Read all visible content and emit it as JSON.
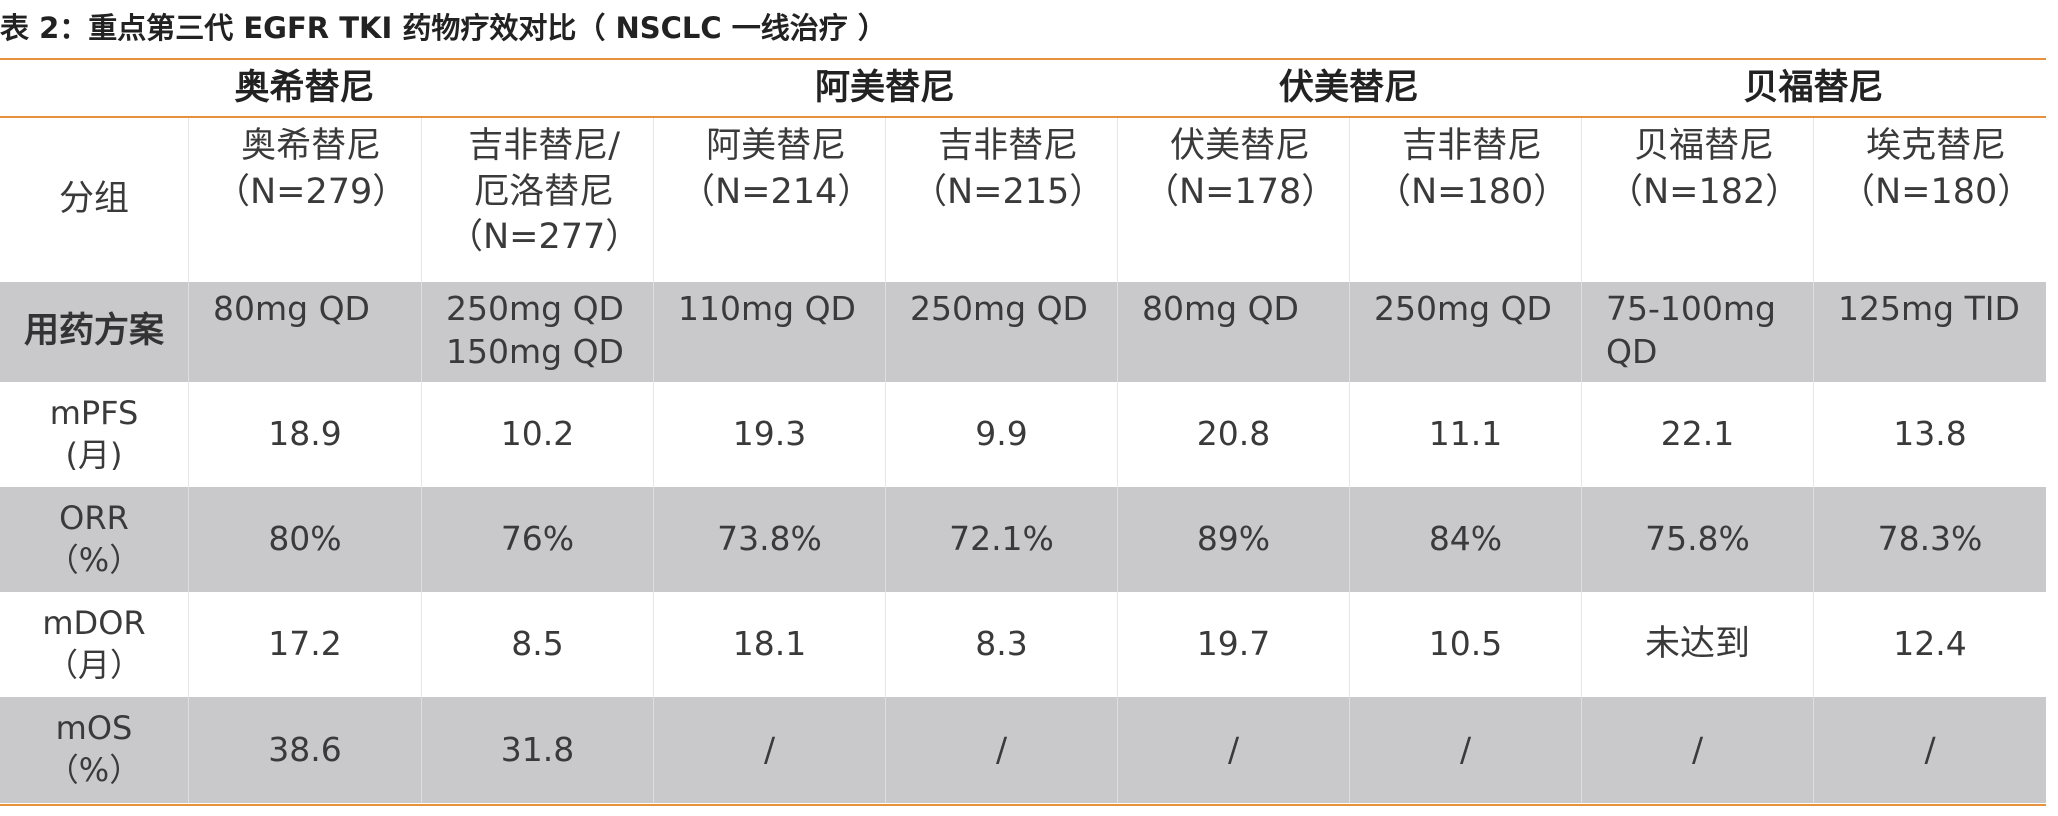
{
  "caption": "表 2：重点第三代 EGFR TKI 药物疗效对比（ NSCLC 一线治疗 ）",
  "groups": [
    "奥希替尼",
    "阿美替尼",
    "伏美替尼",
    "贝福替尼"
  ],
  "header_label": "分组",
  "columns": [
    {
      "line1": "奥希替尼",
      "line2": "（N=279）",
      "line3": ""
    },
    {
      "line1": "吉非替尼/",
      "line2": "厄洛替尼",
      "line3": "（N=277）"
    },
    {
      "line1": "阿美替尼",
      "line2": "（N=214）",
      "line3": ""
    },
    {
      "line1": "吉非替尼",
      "line2": "（N=215）",
      "line3": ""
    },
    {
      "line1": "伏美替尼",
      "line2": "（N=178）",
      "line3": ""
    },
    {
      "line1": "吉非替尼",
      "line2": "（N=180）",
      "line3": ""
    },
    {
      "line1": "贝福替尼",
      "line2": "（N=182）",
      "line3": ""
    },
    {
      "line1": "埃克替尼",
      "line2": "（N=180）",
      "line3": ""
    }
  ],
  "dose_row": {
    "label": "用药方案",
    "values": [
      {
        "l1": "80mg QD",
        "l2": ""
      },
      {
        "l1": "250mg QD",
        "l2": "150mg QD"
      },
      {
        "l1": "110mg QD",
        "l2": ""
      },
      {
        "l1": "250mg QD",
        "l2": ""
      },
      {
        "l1": "80mg QD",
        "l2": ""
      },
      {
        "l1": "250mg QD",
        "l2": ""
      },
      {
        "l1": "75-100mg",
        "l2": "QD"
      },
      {
        "l1": "125mg TID",
        "l2": ""
      }
    ]
  },
  "rows": [
    {
      "label1": "mPFS",
      "label2": "(月)",
      "values": [
        "18.9",
        "10.2",
        "19.3",
        "9.9",
        "20.8",
        "11.1",
        "22.1",
        "13.8"
      ]
    },
    {
      "label1": "ORR",
      "label2": "（%）",
      "values": [
        "80%",
        "76%",
        "73.8%",
        "72.1%",
        "89%",
        "84%",
        "75.8%",
        "78.3%"
      ]
    },
    {
      "label1": "mDOR",
      "label2": "（月）",
      "values": [
        "17.2",
        "8.5",
        "18.1",
        "8.3",
        "19.7",
        "10.5",
        "未达到",
        "12.4"
      ]
    },
    {
      "label1": "mOS",
      "label2": "（%）",
      "values": [
        "38.6",
        "31.8",
        "/",
        "/",
        "/",
        "/",
        "/",
        "/"
      ]
    }
  ]
}
